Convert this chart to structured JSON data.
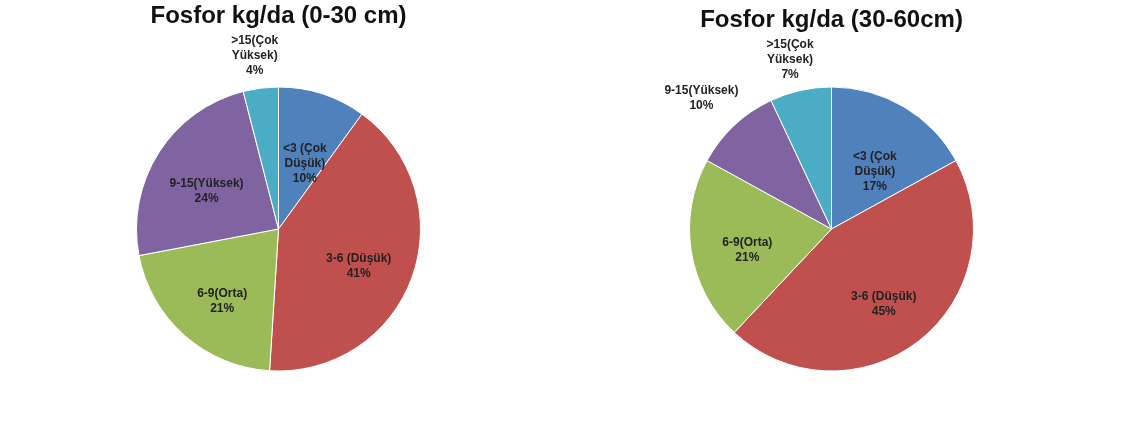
{
  "chart_data": [
    {
      "type": "pie",
      "title": "Fosfor kg/da (0-30 cm)",
      "categories": [
        "<3 (Çok Düşük)",
        "3-6 (Düşük)",
        "6-9(Orta)",
        "9-15(Yüksek)",
        ">15(Çok Yüksek)"
      ],
      "values": [
        10,
        41,
        21,
        24,
        4
      ],
      "value_labels": [
        "10%",
        "41%",
        "21%",
        "24%",
        "4%"
      ],
      "colors": [
        "#4f81bd",
        "#c0504d",
        "#9bbb59",
        "#8064a2",
        "#4bacc6"
      ],
      "legend": false
    },
    {
      "type": "pie",
      "title": "Fosfor kg/da (30-60cm)",
      "categories": [
        "<3 (Çok Düşük)",
        "3-6 (Düşük)",
        "6-9(Orta)",
        "9-15(Yüksek)",
        ">15(Çok Yüksek)"
      ],
      "values": [
        17,
        45,
        21,
        10,
        7
      ],
      "value_labels": [
        "17%",
        "45%",
        "21%",
        "10%",
        "7%"
      ],
      "colors": [
        "#4f81bd",
        "#c0504d",
        "#9bbb59",
        "#8064a2",
        "#4bacc6"
      ],
      "legend": false
    }
  ]
}
